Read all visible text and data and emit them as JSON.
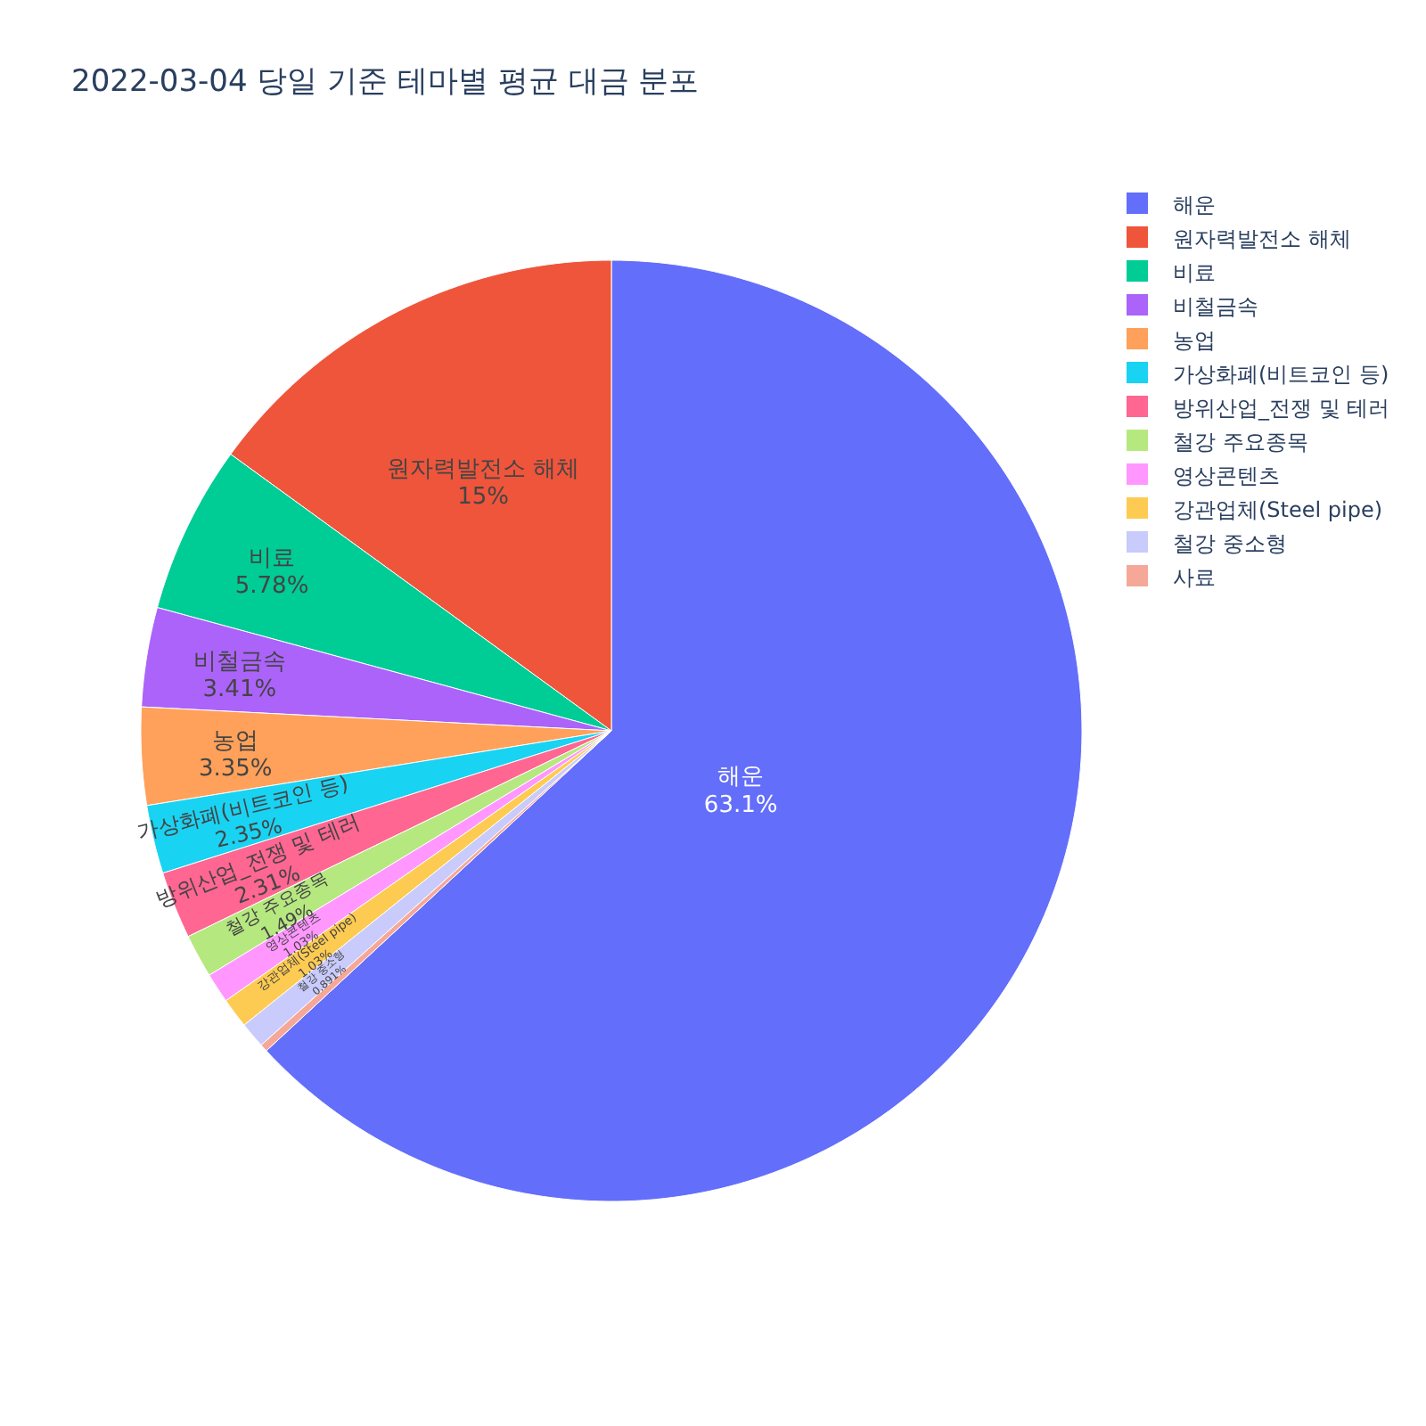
{
  "chart_data": {
    "type": "pie",
    "title": "2022-03-04 당일 기준 테마별 평균 대금 분포",
    "categories": [
      "해운",
      "원자력발전소 해체",
      "비료",
      "비철금속",
      "농업",
      "가상화폐(비트코인 등)",
      "방위산업_전쟁 및 테러",
      "철강 주요종목",
      "영상콘텐츠",
      "강관업체(Steel pipe)",
      "철강 중소형",
      "사료"
    ],
    "values": [
      63.1,
      15,
      5.78,
      3.41,
      3.35,
      2.35,
      2.31,
      1.49,
      1.03,
      1.03,
      0.891,
      0.259
    ],
    "value_labels": [
      "63.1%",
      "15%",
      "5.78%",
      "3.41%",
      "3.35%",
      "2.35%",
      "2.31%",
      "1.49%",
      "1.03%",
      "1.03%",
      "0.891%",
      null
    ],
    "colors": [
      "#636efa",
      "#ef553b",
      "#00cc96",
      "#ab63fa",
      "#ffa15a",
      "#19d3f3",
      "#ff6692",
      "#b6e880",
      "#ff97ff",
      "#fecb52",
      "#c8cbfb",
      "#f5a898"
    ],
    "legend": "top right"
  }
}
